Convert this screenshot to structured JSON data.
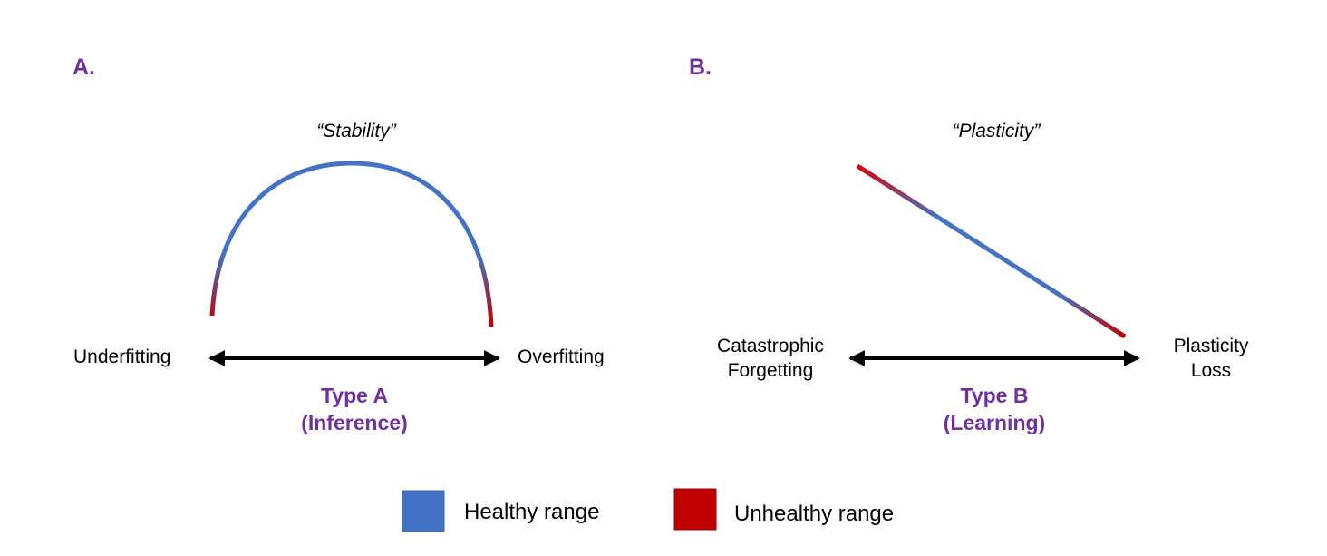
{
  "colors": {
    "healthy": "#4472C4",
    "unhealthy": "#C00000",
    "accent_purple": "#7030A0",
    "arrow": "#000000"
  },
  "panel_a": {
    "letter": "A.",
    "title": "“Stability”",
    "left_end": "Underfitting",
    "right_end": "Overfitting",
    "type_line1": "Type A",
    "type_line2": "(Inference)"
  },
  "panel_b": {
    "letter": "B.",
    "title": "“Plasticity”",
    "left_end_line1": "Catastrophic",
    "left_end_line2": "Forgetting",
    "right_end_line1": "Plasticity",
    "right_end_line2": "Loss",
    "type_line1": "Type B",
    "type_line2": "(Learning)"
  },
  "legend": {
    "healthy_label": "Healthy range",
    "unhealthy_label": "Unhealthy range"
  }
}
